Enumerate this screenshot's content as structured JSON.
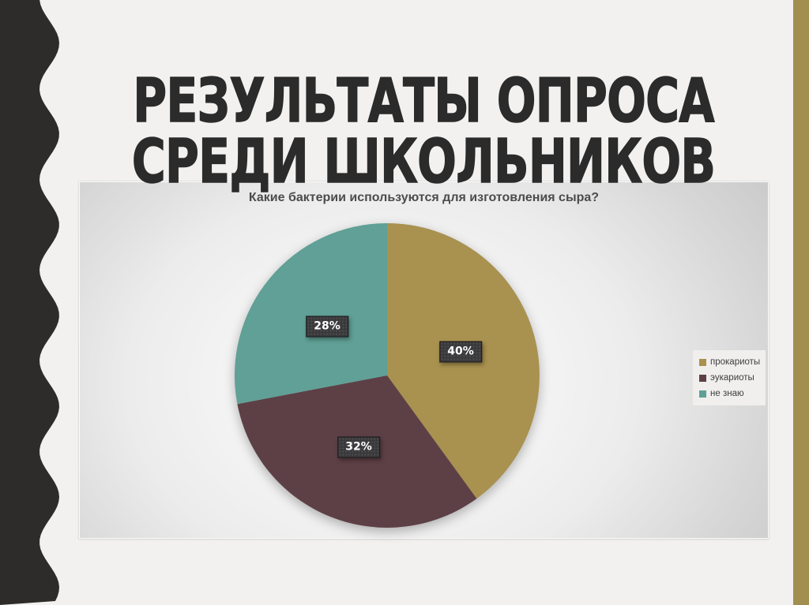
{
  "slide": {
    "title_line1": "РЕЗУЛЬТАТЫ ОПРОСА",
    "title_line2": "СРЕДИ ШКОЛЬНИКОВ"
  },
  "colors": {
    "background": "#f2f1ef",
    "wave_band": "#2d2c2b",
    "accent_stripe": "#a28e4e",
    "title_text": "#2b2b2b",
    "chart_title_text": "#4c4c4c",
    "label_box": "#39383a",
    "label_text": "#ffffff",
    "legend_bg": "#f0efed",
    "legend_text": "#3e3e3e"
  },
  "chart_data": {
    "type": "pie",
    "title": "Какие бактерии используются для изготовления сыра?",
    "categories": [
      "прокариоты",
      "эукариоты",
      "не знаю"
    ],
    "values": [
      40,
      32,
      28
    ],
    "labels": [
      "40%",
      "32%",
      "28%"
    ],
    "colors": [
      "#a9914f",
      "#5d4046",
      "#60a096"
    ],
    "start_angle_deg": 0,
    "direction": "clockwise",
    "legend_position": "right",
    "legend": [
      {
        "label": "прокариоты",
        "color": "#a9914f"
      },
      {
        "label": "эукариоты",
        "color": "#5d4046"
      },
      {
        "label": "не знаю",
        "color": "#60a096"
      }
    ]
  }
}
